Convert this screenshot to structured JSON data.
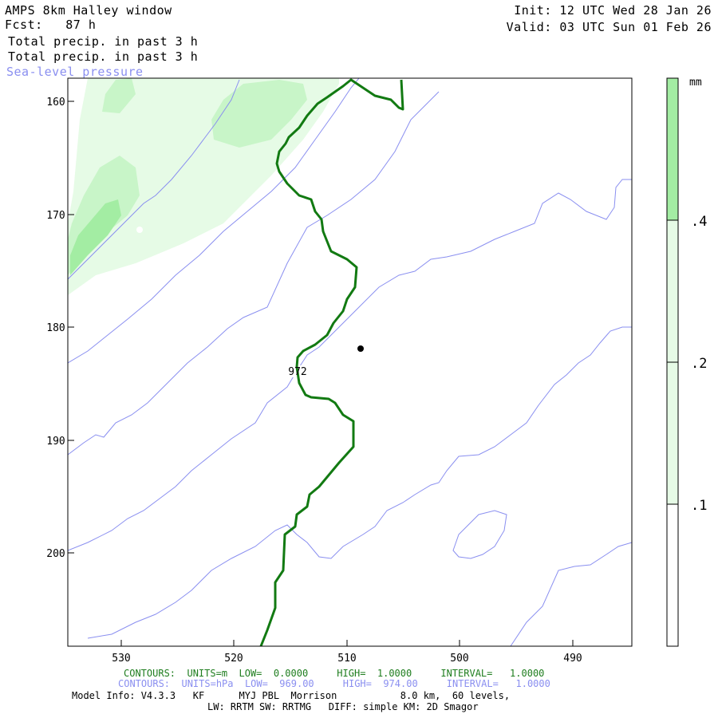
{
  "header": {
    "title": "AMPS 8km Halley window",
    "forecast": "Fcst:   87 h",
    "field1": "Total precip. in past 3 h",
    "field2": "Total precip. in past 3 h",
    "field3": "Sea-level pressure",
    "init": "Init: 12 UTC Wed 28 Jan 26",
    "valid": "Valid: 03 UTC Sun 01 Feb 26"
  },
  "map": {
    "y_ticks": [
      "160",
      "170",
      "180",
      "190",
      "200"
    ],
    "x_ticks": [
      "530",
      "520",
      "510",
      "500",
      "490"
    ],
    "contour_label": "972",
    "colors": {
      "precip_light": "#e6fbe6",
      "precip_mid": "#c8f5c8",
      "precip_dark": "#a3eda3",
      "coast": "#127a12",
      "isobar": "#8a8ff0"
    }
  },
  "legend": {
    "unit": "mm",
    "labels": [
      ".4",
      ".2",
      ".1"
    ],
    "colors": [
      "#a3eda3",
      "#e6fbe6",
      "#e6fbe6",
      "#ffffff"
    ]
  },
  "footer": {
    "contours_green": "CONTOURS:  UNITS=m  LOW=  0.0000     HIGH=  1.0000     INTERVAL=   1.0000",
    "contours_blue": "CONTOURS:  UNITS=hPa  LOW=  969.00     HIGH=  974.00     INTERVAL=   1.0000",
    "model_info": "Model Info: V4.3.3   KF      MYJ PBL  Morrison           8.0 km,  60 levels,",
    "physics": "LW: RRTM SW: RRTMG   DIFF: simple KM: 2D Smagor"
  }
}
